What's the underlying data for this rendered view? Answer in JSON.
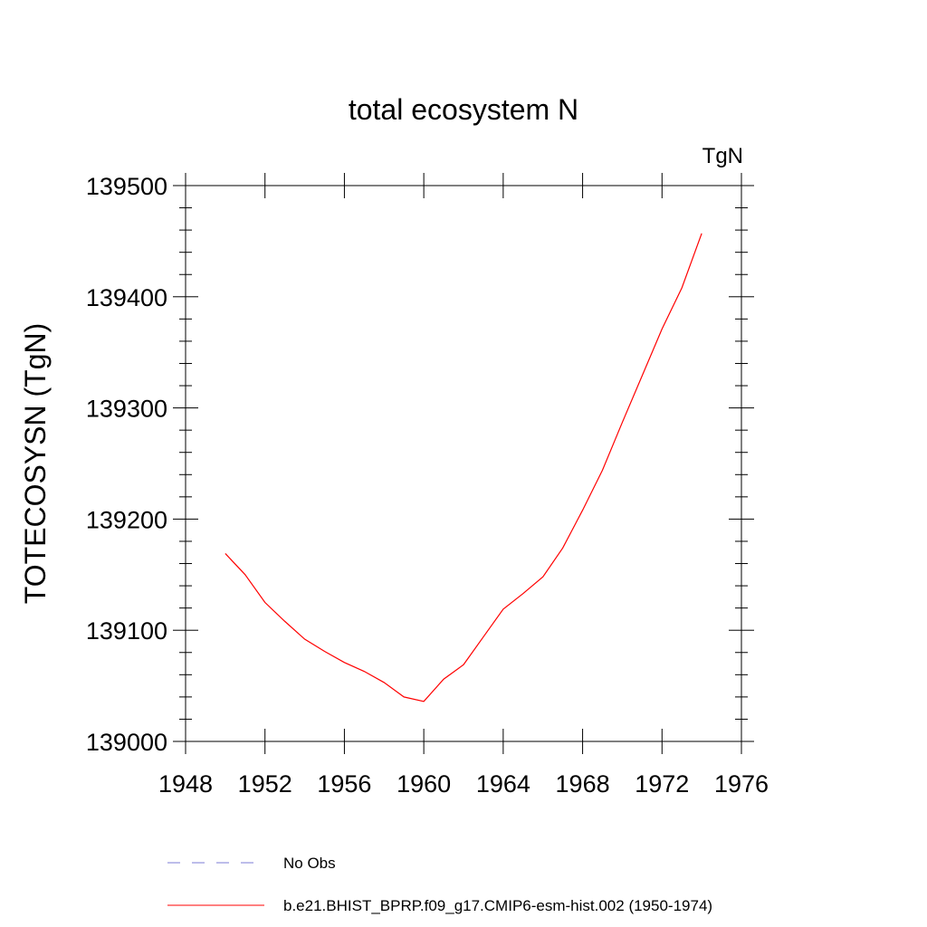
{
  "chart_data": {
    "type": "line",
    "title": "total ecosystem N",
    "units_label": "TgN",
    "xlabel": "",
    "ylabel": "TOTECOSYSN  (TgN)",
    "xlim": [
      1948,
      1976
    ],
    "ylim": [
      139000,
      139500
    ],
    "x_ticks": [
      1948,
      1952,
      1956,
      1960,
      1964,
      1968,
      1972,
      1976
    ],
    "y_ticks": [
      139000,
      139100,
      139200,
      139300,
      139400,
      139500
    ],
    "x_tick_labels": [
      "1948",
      "1952",
      "1956",
      "1960",
      "1964",
      "1968",
      "1972",
      "1976"
    ],
    "y_tick_labels": [
      "139000",
      "139100",
      "139200",
      "139300",
      "139400",
      "139500"
    ],
    "grid": false,
    "series": [
      {
        "name": "b.e21.BHIST_BPRP.f09_g17.CMIP6-esm-hist.002 (1950-1974)",
        "color": "#ff0000",
        "dash": "solid",
        "x": [
          1950,
          1951,
          1952,
          1953,
          1954,
          1955,
          1956,
          1957,
          1958,
          1959,
          1960,
          1961,
          1962,
          1963,
          1964,
          1965,
          1966,
          1967,
          1968,
          1969,
          1970,
          1971,
          1972,
          1973,
          1974
        ],
        "values": [
          139169,
          139150,
          139125,
          139108,
          139092,
          139081,
          139071,
          139063,
          139053,
          139040,
          139036,
          139056,
          139069,
          139094,
          139119,
          139133,
          139148,
          139174,
          139208,
          139244,
          139287,
          139329,
          139371,
          139408,
          139457
        ]
      }
    ],
    "legend": {
      "placement": "bottom",
      "entries": [
        {
          "label": "No Obs",
          "color": "#7b7bd6",
          "dash": "dashed"
        },
        {
          "label": "b.e21.BHIST_BPRP.f09_g17.CMIP6-esm-hist.002 (1950-1974)",
          "color": "#ff0000",
          "dash": "solid"
        }
      ]
    }
  }
}
